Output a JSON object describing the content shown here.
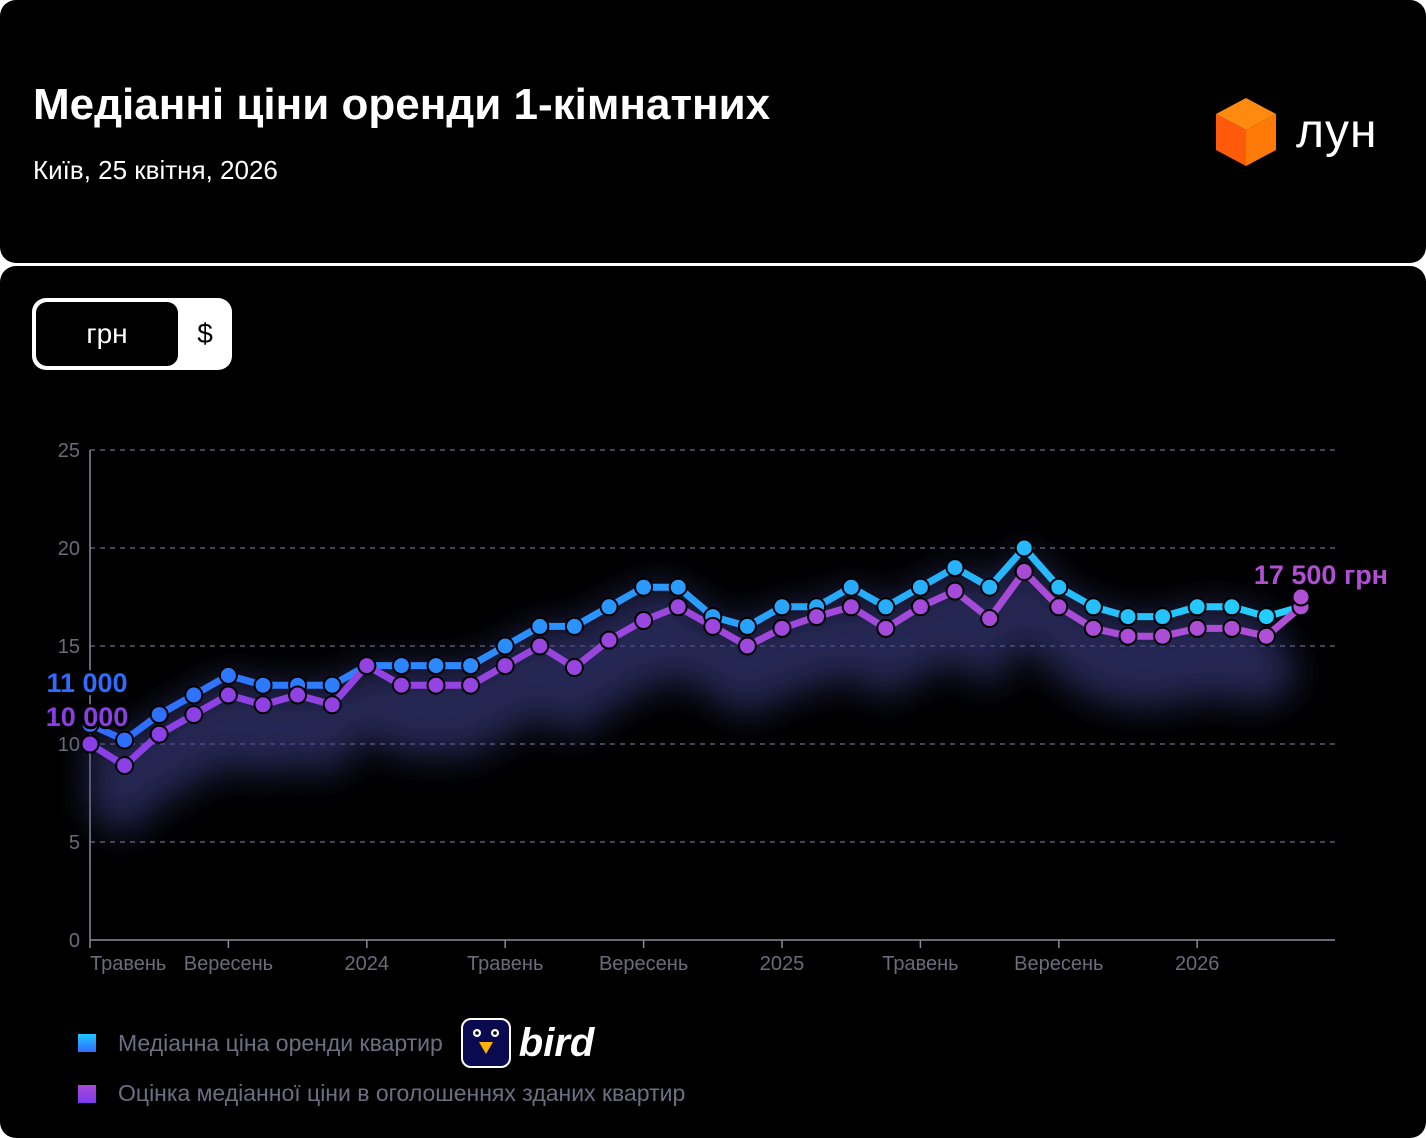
{
  "header": {
    "title": "Медіанні ціни оренди 1-кімнатних",
    "subtitle": "Київ, 25 квітня, 2026",
    "logo_text": "лун"
  },
  "currency_toggle": {
    "options": [
      "грн",
      "$"
    ],
    "selected": "грн"
  },
  "legend": {
    "items": [
      {
        "label": "Медіанна ціна оренди квартир",
        "color": "#2a9dff"
      },
      {
        "label": "Оцінка медіанної ціни в оголошеннях зданих квартир",
        "color": "#9a45e0"
      }
    ],
    "sponsor_text": "bird"
  },
  "chart_data": {
    "type": "line",
    "x": [
      "2023-05",
      "2023-06",
      "2023-07",
      "2023-08",
      "2023-09",
      "2023-10",
      "2023-11",
      "2023-12",
      "2024-01",
      "2024-02",
      "2024-03",
      "2024-04",
      "2024-05",
      "2024-06",
      "2024-07",
      "2024-08",
      "2024-09",
      "2024-10",
      "2024-11",
      "2024-12",
      "2025-01",
      "2025-02",
      "2025-03",
      "2025-04",
      "2025-05",
      "2025-06",
      "2025-07",
      "2025-08",
      "2025-09",
      "2025-10",
      "2025-11",
      "2025-12",
      "2026-01",
      "2026-02",
      "2026-03",
      "2026-04"
    ],
    "x_tick_labels": [
      {
        "x": "2023-05",
        "label": "Травень"
      },
      {
        "x": "2023-09",
        "label": "Вересень"
      },
      {
        "x": "2024-01",
        "label": "2024"
      },
      {
        "x": "2024-05",
        "label": "Травень"
      },
      {
        "x": "2024-09",
        "label": "Вересень"
      },
      {
        "x": "2025-01",
        "label": "2025"
      },
      {
        "x": "2025-05",
        "label": "Травень"
      },
      {
        "x": "2025-09",
        "label": "Вересень"
      },
      {
        "x": "2026-01",
        "label": "2026"
      }
    ],
    "y_ticks": [
      "0",
      "5",
      "10",
      "15",
      "20",
      "25"
    ],
    "ylim": [
      0,
      25
    ],
    "grid": true,
    "series": [
      {
        "name": "Медіанна ціна оренди квартир",
        "color_start": "#2f6bff",
        "color_end": "#22d0ff",
        "values": [
          11,
          10.2,
          11.5,
          12.5,
          13.5,
          13,
          13,
          13,
          14,
          14,
          14,
          14,
          15,
          16,
          16,
          17,
          18,
          18,
          16.5,
          16,
          17,
          17,
          18,
          17,
          18,
          19,
          18,
          20,
          18,
          17,
          16.5,
          16.5,
          17,
          17,
          16.5,
          null
        ],
        "start_label": "11 000"
      },
      {
        "name": "Оцінка медіанної ціни в оголошеннях зданих квартир",
        "color_start": "#8a3fe6",
        "color_end": "#b04fd4",
        "values": [
          10,
          8.9,
          10.5,
          11.5,
          12.5,
          12,
          12.5,
          12,
          14,
          13,
          13,
          13,
          14,
          15,
          13.9,
          15.3,
          16.3,
          17,
          16,
          15,
          15.9,
          16.5,
          17,
          15.9,
          17,
          17.8,
          16.4,
          18.8,
          17,
          15.9,
          15.5,
          15.5,
          15.9,
          15.9,
          15.5,
          17
        ],
        "forecast": {
          "x": "2026-04",
          "value": 17.5
        },
        "start_label": "10 000",
        "end_label": "17 500 грн"
      }
    ]
  }
}
